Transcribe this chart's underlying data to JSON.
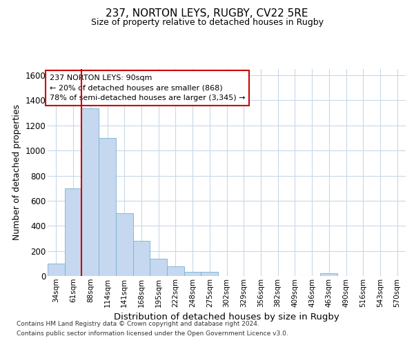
{
  "title": "237, NORTON LEYS, RUGBY, CV22 5RE",
  "subtitle": "Size of property relative to detached houses in Rugby",
  "xlabel": "Distribution of detached houses by size in Rugby",
  "ylabel": "Number of detached properties",
  "footer_line1": "Contains HM Land Registry data © Crown copyright and database right 2024.",
  "footer_line2": "Contains public sector information licensed under the Open Government Licence v3.0.",
  "categories": [
    "34sqm",
    "61sqm",
    "88sqm",
    "114sqm",
    "141sqm",
    "168sqm",
    "195sqm",
    "222sqm",
    "248sqm",
    "275sqm",
    "302sqm",
    "329sqm",
    "356sqm",
    "382sqm",
    "409sqm",
    "436sqm",
    "463sqm",
    "490sqm",
    "516sqm",
    "543sqm",
    "570sqm"
  ],
  "values": [
    100,
    700,
    1335,
    1100,
    500,
    280,
    140,
    75,
    35,
    35,
    0,
    0,
    0,
    0,
    0,
    0,
    20,
    0,
    0,
    0,
    0
  ],
  "bar_color": "#c5d8ef",
  "bar_edge_color": "#7aafd4",
  "grid_color": "#c8d8e8",
  "background_color": "#ffffff",
  "vline_color": "#cc0000",
  "annotation_text_line1": "237 NORTON LEYS: 90sqm",
  "annotation_text_line2": "← 20% of detached houses are smaller (868)",
  "annotation_text_line3": "78% of semi-detached houses are larger (3,345) →",
  "annotation_box_color": "#cc0000",
  "ylim": [
    0,
    1650
  ],
  "yticks": [
    0,
    200,
    400,
    600,
    800,
    1000,
    1200,
    1400,
    1600
  ]
}
